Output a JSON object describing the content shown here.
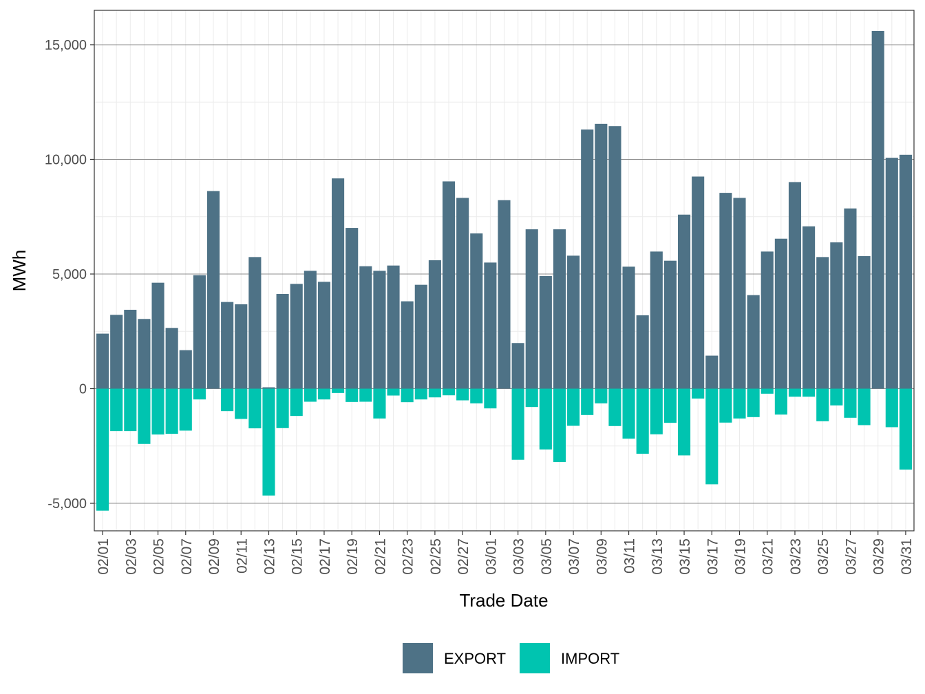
{
  "chart_data": {
    "type": "bar",
    "xlabel": "Trade Date",
    "ylabel": "MWh",
    "ylim": [
      -6200,
      16500
    ],
    "yticks": [
      -5000,
      0,
      5000,
      10000,
      15000
    ],
    "ytick_labels": [
      "-5,000",
      "0",
      "5,000",
      "10,000",
      "15,000"
    ],
    "grid": true,
    "legend_position": "bottom",
    "colors": {
      "EXPORT": "#4e7286",
      "IMPORT": "#00c4b0"
    },
    "categories": [
      "02/01",
      "02/02",
      "02/03",
      "02/04",
      "02/05",
      "02/06",
      "02/07",
      "02/08",
      "02/09",
      "02/10",
      "02/11",
      "02/12",
      "02/13",
      "02/14",
      "02/15",
      "02/16",
      "02/17",
      "02/18",
      "02/19",
      "02/20",
      "02/21",
      "02/22",
      "02/23",
      "02/24",
      "02/25",
      "02/26",
      "02/27",
      "02/28",
      "03/01",
      "03/02",
      "03/03",
      "03/04",
      "03/05",
      "03/06",
      "03/07",
      "03/08",
      "03/09",
      "03/10",
      "03/11",
      "03/12",
      "03/13",
      "03/14",
      "03/15",
      "03/16",
      "03/17",
      "03/18",
      "03/19",
      "03/20",
      "03/21",
      "03/22",
      "03/23",
      "03/24",
      "03/25",
      "03/26",
      "03/27",
      "03/28",
      "03/29",
      "03/30",
      "03/31"
    ],
    "tick_labels": [
      "02/01",
      "02/03",
      "02/05",
      "02/07",
      "02/09",
      "02/11",
      "02/13",
      "02/15",
      "02/17",
      "02/19",
      "02/21",
      "02/23",
      "02/25",
      "02/27",
      "03/01",
      "03/03",
      "03/05",
      "03/07",
      "03/09",
      "03/11",
      "03/13",
      "03/15",
      "03/17",
      "03/19",
      "03/21",
      "03/23",
      "03/25",
      "03/27",
      "03/29",
      "03/31"
    ],
    "series": [
      {
        "name": "EXPORT",
        "values": [
          2400,
          3220,
          3440,
          3040,
          4620,
          2650,
          1680,
          4950,
          8620,
          3780,
          3680,
          5740,
          60,
          4130,
          4570,
          5140,
          4660,
          9170,
          7010,
          5340,
          5140,
          5370,
          3810,
          4530,
          5600,
          9040,
          8320,
          6770,
          5500,
          8220,
          1990,
          6950,
          4910,
          6950,
          5800,
          11300,
          11550,
          11450,
          5320,
          3200,
          5980,
          5580,
          7590,
          9250,
          1440,
          8540,
          8320,
          4080,
          5980,
          6540,
          9010,
          7080,
          5740,
          6380,
          7860,
          5780,
          15600,
          10070,
          10200
        ]
      },
      {
        "name": "IMPORT",
        "values": [
          -5320,
          -1850,
          -1850,
          -2410,
          -2000,
          -1970,
          -1830,
          -470,
          0,
          -980,
          -1320,
          -1730,
          -4660,
          -1720,
          -1190,
          -570,
          -470,
          -190,
          -580,
          -570,
          -1300,
          -300,
          -590,
          -470,
          -380,
          -290,
          -510,
          -640,
          -860,
          0,
          -3100,
          -800,
          -2650,
          -3200,
          -1620,
          -1150,
          -640,
          -1630,
          -2180,
          -2840,
          -1990,
          -1490,
          -2910,
          -430,
          -4170,
          -1480,
          -1300,
          -1240,
          -220,
          -1130,
          -350,
          -350,
          -1420,
          -730,
          -1270,
          -1590,
          0,
          -1680,
          -3530
        ]
      }
    ]
  }
}
